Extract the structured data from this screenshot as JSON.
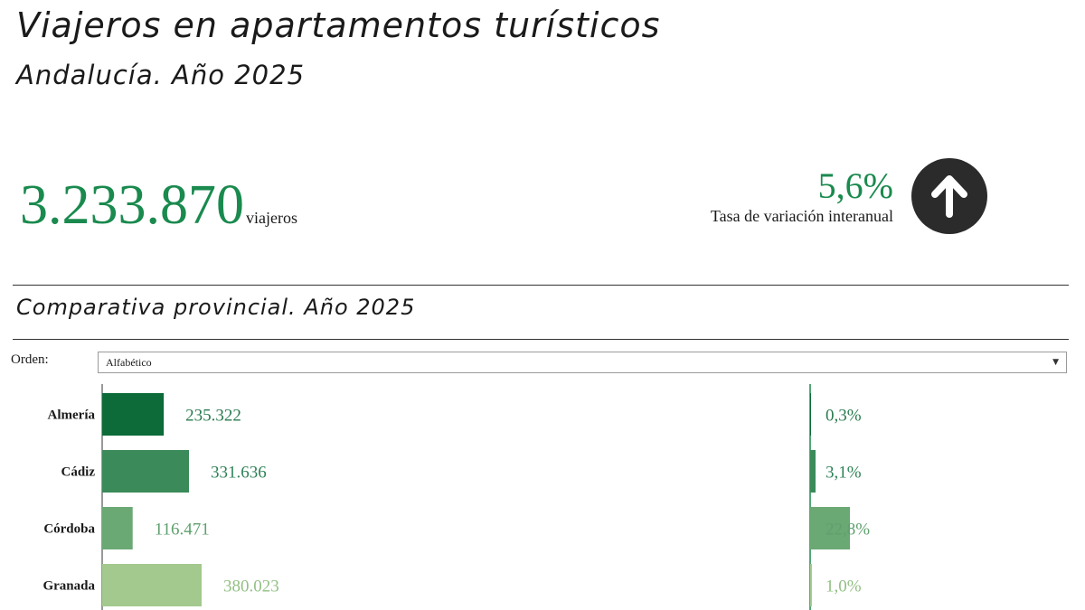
{
  "header": {
    "title": "Viajeros en apartamentos turísticos",
    "subtitle": "Andalucía. Año 2025"
  },
  "kpi": {
    "total_value": "3.233.870",
    "total_unit": "viajeros",
    "variation_value": "5,6%",
    "variation_label": "Tasa de variación interanual",
    "trend_icon": "arrow-up-icon"
  },
  "section": {
    "title": "Comparativa provincial. Año 2025",
    "order_label": "Orden:",
    "order_selected": "Alfabético"
  },
  "colors": {
    "accent": "#1a8a4e",
    "bar_shades": [
      "#0c6b38",
      "#3a8a5a",
      "#6aa874",
      "#a3c98e"
    ],
    "value_text": [
      "#2a7a4f",
      "#2f8258",
      "#5fa06e",
      "#93bf84"
    ]
  },
  "chart_data": {
    "type": "bar",
    "categories": [
      "Almería",
      "Cádiz",
      "Córdoba",
      "Granada"
    ],
    "series": [
      {
        "values": [
          235322,
          331636,
          116471,
          380023
        ],
        "labels": [
          "235.322",
          "331.636",
          "116.471",
          "380.023"
        ]
      },
      {
        "values": [
          0.3,
          3.1,
          22.8,
          1.0
        ],
        "labels": [
          "0,3%",
          "3,1%",
          "22,8%",
          "1,0%"
        ]
      }
    ]
  }
}
